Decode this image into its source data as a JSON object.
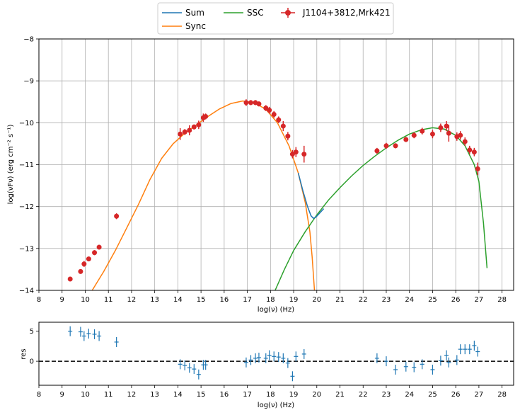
{
  "chart_data": [
    {
      "type": "line",
      "xlabel": "log(ν)  (Hz)",
      "ylabel_main": "log(νFν)  (erg cm⁻²  s⁻¹)",
      "xlim": [
        8,
        28.5
      ],
      "ylim": [
        -14,
        -8
      ],
      "xticks": [
        "8",
        "9",
        "10",
        "11",
        "12",
        "13",
        "14",
        "15",
        "16",
        "17",
        "18",
        "19",
        "20",
        "21",
        "22",
        "23",
        "24",
        "25",
        "26",
        "27",
        "28"
      ],
      "yticks": [
        "−8",
        "−9",
        "−10",
        "−11",
        "−12",
        "−13",
        "−14"
      ],
      "grid": true,
      "legend_position": "top-center",
      "legend": [
        "Sum",
        "SSC",
        "J1104+3812,Mrk421",
        "Sync"
      ],
      "colors": {
        "sum": "#1f77b4",
        "sync": "#ff7f0e",
        "ssc": "#2ca02c",
        "data": "#d62728"
      },
      "series": [
        {
          "name": "Sync",
          "x": [
            10.3,
            10.8,
            11.3,
            11.8,
            12.3,
            12.8,
            13.3,
            13.8,
            14.3,
            14.8,
            15.3,
            15.8,
            16.3,
            16.8,
            17.3,
            17.8,
            18.3,
            18.8,
            19.2,
            19.5,
            19.7,
            19.8,
            19.9
          ],
          "y": [
            -14.0,
            -13.55,
            -13.05,
            -12.5,
            -11.95,
            -11.35,
            -10.85,
            -10.5,
            -10.25,
            -10.05,
            -9.85,
            -9.67,
            -9.54,
            -9.48,
            -9.52,
            -9.68,
            -10.0,
            -10.55,
            -11.2,
            -11.9,
            -12.6,
            -13.2,
            -14.0
          ]
        },
        {
          "name": "SSC",
          "x": [
            18.2,
            18.6,
            19.0,
            19.5,
            20.0,
            20.5,
            21.0,
            21.5,
            22.0,
            22.5,
            23.0,
            23.5,
            24.0,
            24.5,
            25.0,
            25.5,
            26.0,
            26.4,
            26.8,
            27.0,
            27.2,
            27.35
          ],
          "y": [
            -14.0,
            -13.5,
            -13.05,
            -12.6,
            -12.2,
            -11.85,
            -11.55,
            -11.27,
            -11.02,
            -10.8,
            -10.6,
            -10.42,
            -10.27,
            -10.17,
            -10.12,
            -10.15,
            -10.3,
            -10.55,
            -11.0,
            -11.4,
            -12.4,
            -13.47
          ]
        },
        {
          "name": "Sum",
          "x": [
            19.2,
            19.4,
            19.6,
            19.75,
            19.85,
            19.95,
            20.1,
            20.3
          ],
          "y": [
            -11.2,
            -11.62,
            -12.0,
            -12.22,
            -12.28,
            -12.26,
            -12.17,
            -12.05
          ]
        },
        {
          "name": "J1104+3812,Mrk421",
          "x": [
            9.35,
            9.8,
            9.95,
            10.15,
            10.4,
            10.6,
            11.35,
            14.1,
            14.3,
            14.5,
            14.7,
            14.9,
            15.1,
            15.2,
            16.95,
            17.15,
            17.35,
            17.5,
            17.8,
            17.95,
            18.15,
            18.35,
            18.55,
            18.75,
            18.95,
            19.1,
            19.45,
            22.6,
            23.0,
            23.4,
            23.85,
            24.2,
            24.55,
            25.0,
            25.35,
            25.6,
            25.7,
            26.05,
            26.2,
            26.4,
            26.6,
            26.8,
            26.95
          ],
          "y": [
            -13.73,
            -13.55,
            -13.37,
            -13.25,
            -13.1,
            -12.97,
            -12.23,
            -10.27,
            -10.22,
            -10.18,
            -10.1,
            -10.05,
            -9.88,
            -9.85,
            -9.52,
            -9.52,
            -9.52,
            -9.55,
            -9.65,
            -9.7,
            -9.8,
            -9.93,
            -10.08,
            -10.32,
            -10.75,
            -10.7,
            -10.75,
            -10.67,
            -10.55,
            -10.55,
            -10.4,
            -10.3,
            -10.2,
            -10.27,
            -10.12,
            -10.08,
            -10.25,
            -10.33,
            -10.3,
            -10.45,
            -10.65,
            -10.7,
            -11.1
          ],
          "yerr": [
            0.05,
            0.05,
            0.07,
            0.05,
            0.06,
            0.05,
            0.07,
            0.14,
            0.07,
            0.12,
            0.06,
            0.1,
            0.1,
            0.07,
            0.08,
            0.06,
            0.06,
            0.06,
            0.07,
            0.08,
            0.08,
            0.08,
            0.12,
            0.1,
            0.1,
            0.12,
            0.2,
            0.07,
            0.07,
            0.06,
            0.06,
            0.07,
            0.08,
            0.1,
            0.1,
            0.12,
            0.2,
            0.1,
            0.1,
            0.1,
            0.1,
            0.1,
            0.15
          ]
        }
      ]
    },
    {
      "type": "scatter",
      "xlabel": "log(ν)  (Hz)",
      "ylabel": "res",
      "xlim": [
        8,
        28.5
      ],
      "ylim": [
        -4,
        6.5
      ],
      "xticks": [
        "8",
        "9",
        "10",
        "11",
        "12",
        "13",
        "14",
        "15",
        "16",
        "17",
        "18",
        "19",
        "20",
        "21",
        "22",
        "23",
        "24",
        "25",
        "26",
        "27",
        "28"
      ],
      "yticks": [
        "5",
        "0"
      ],
      "reference_line": 0,
      "series": [
        {
          "name": "",
          "x": [
            9.35,
            9.8,
            9.95,
            10.15,
            10.4,
            10.6,
            11.35,
            14.1,
            14.3,
            14.5,
            14.7,
            14.9,
            15.1,
            15.2,
            16.95,
            17.15,
            17.35,
            17.5,
            17.8,
            17.95,
            18.15,
            18.35,
            18.55,
            18.75,
            18.95,
            19.1,
            19.45,
            22.6,
            23.0,
            23.4,
            23.85,
            24.2,
            24.55,
            25.0,
            25.35,
            25.6,
            25.7,
            26.05,
            26.2,
            26.4,
            26.6,
            26.8,
            26.95
          ],
          "y": [
            5.0,
            4.9,
            4.2,
            4.6,
            4.5,
            4.2,
            3.2,
            -0.5,
            -0.7,
            -1.1,
            -1.3,
            -2.2,
            -0.6,
            -0.6,
            -0.2,
            0.2,
            0.5,
            0.6,
            0.5,
            1.0,
            0.8,
            0.7,
            0.5,
            -0.3,
            -2.5,
            0.8,
            1.2,
            0.5,
            0.0,
            -1.4,
            -0.9,
            -1.0,
            -0.5,
            -1.4,
            0.1,
            1.0,
            -0.2,
            0.2,
            2.0,
            2.0,
            2.0,
            2.6,
            1.6
          ]
        }
      ]
    }
  ]
}
